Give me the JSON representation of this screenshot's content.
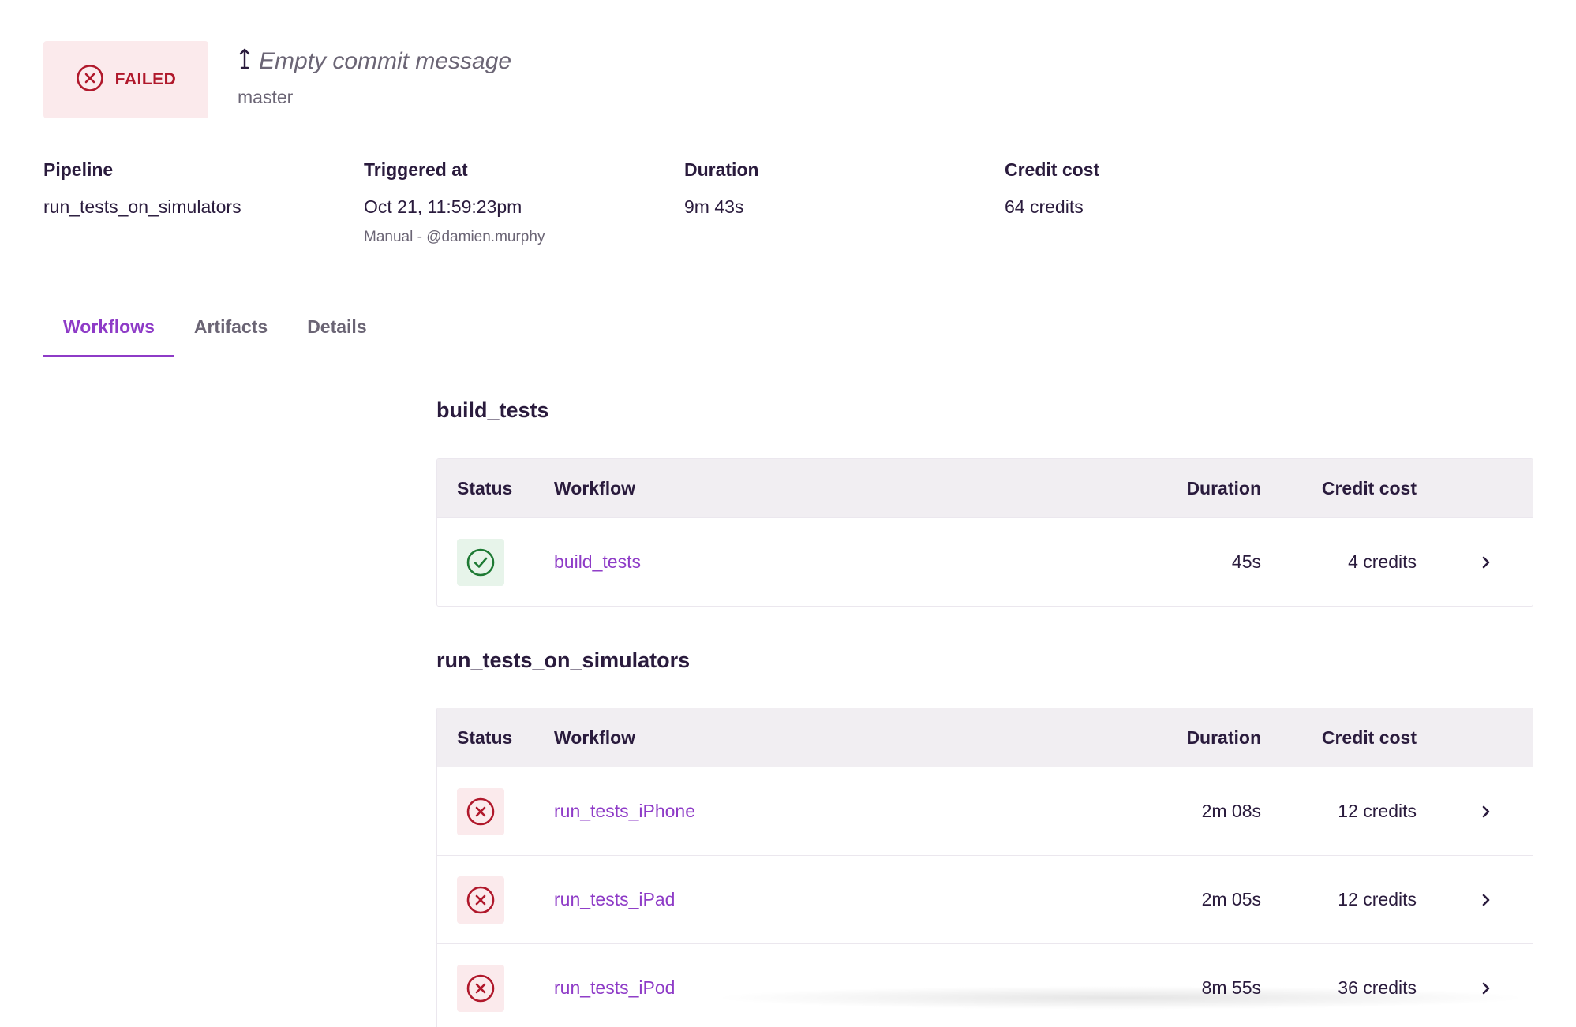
{
  "build": {
    "status_label": "FAILED",
    "commit_icon": "arrow-up-down-icon",
    "commit_message": "Empty commit message",
    "branch": "master"
  },
  "meta": {
    "pipeline": {
      "label": "Pipeline",
      "value": "run_tests_on_simulators"
    },
    "triggered": {
      "label": "Triggered at",
      "value": "Oct 21, 11:59:23pm",
      "sub": "Manual - @damien.murphy"
    },
    "duration": {
      "label": "Duration",
      "value": "9m 43s"
    },
    "credit": {
      "label": "Credit cost",
      "value": "64 credits"
    }
  },
  "tabs": [
    {
      "label": "Workflows",
      "active": true
    },
    {
      "label": "Artifacts",
      "active": false
    },
    {
      "label": "Details",
      "active": false
    }
  ],
  "table_headers": {
    "status": "Status",
    "workflow": "Workflow",
    "duration": "Duration",
    "credit": "Credit cost"
  },
  "sections": [
    {
      "title": "build_tests",
      "rows": [
        {
          "status": "success",
          "workflow": "build_tests",
          "duration": "45s",
          "credit": "4 credits"
        }
      ]
    },
    {
      "title": "run_tests_on_simulators",
      "rows": [
        {
          "status": "failed",
          "workflow": "run_tests_iPhone",
          "duration": "2m 08s",
          "credit": "12 credits"
        },
        {
          "status": "failed",
          "workflow": "run_tests_iPad",
          "duration": "2m 05s",
          "credit": "12 credits"
        },
        {
          "status": "failed",
          "workflow": "run_tests_iPod",
          "duration": "8m 55s",
          "credit": "36 credits"
        }
      ]
    }
  ],
  "colors": {
    "accent": "#8e3bc7",
    "failed": "#b0182b",
    "failed_bg": "#fbeaec",
    "success": "#1e7a34",
    "success_bg": "#e7f4ea",
    "text": "#2a1b3d",
    "muted": "#6b6575"
  }
}
